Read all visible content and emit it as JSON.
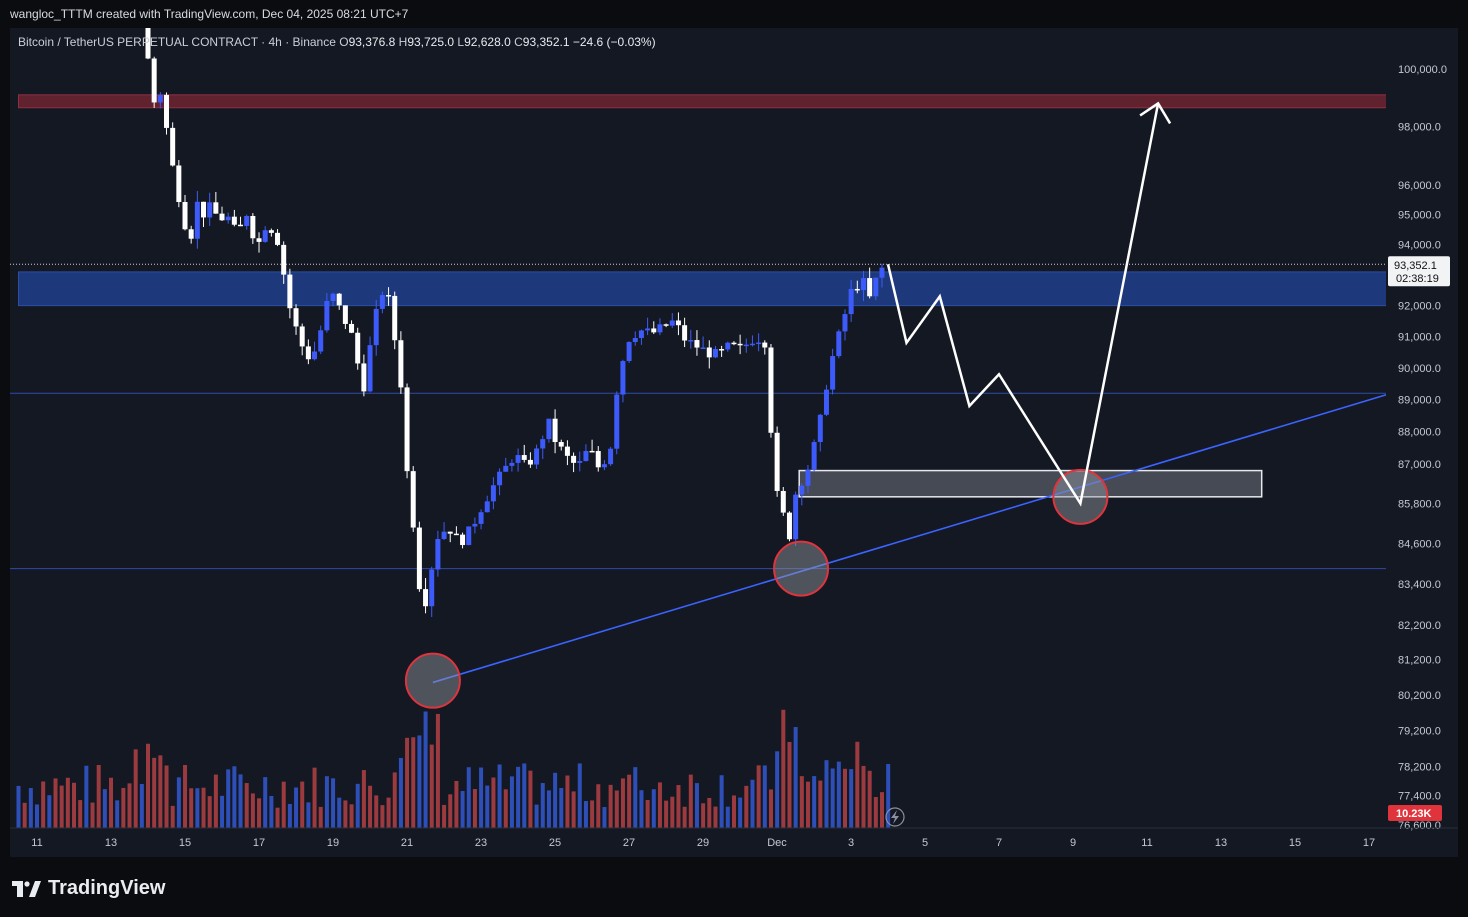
{
  "header": {
    "caption": "wangloc_TTTM created with TradingView.com, Dec 04, 2025 08:21 UTC+7"
  },
  "legend": {
    "symbol": "Bitcoin / TetherUS PERPETUAL CONTRACT · 4h · Binance",
    "open_label": "O",
    "open": "93,376.8",
    "high_label": "H",
    "high": "93,725.0",
    "low_label": "L",
    "low": "92,628.0",
    "close_label": "C",
    "close": "93,352.1",
    "change": "−24.6 (−0.03%)"
  },
  "current_price": {
    "value": "93,352.1",
    "countdown": "02:38:19"
  },
  "volume_tag": "10.23K",
  "branding": {
    "name": "TradingView"
  },
  "colors": {
    "background": "#141822",
    "up_candle": "#3d5bfa",
    "down_candle": "#ffffff",
    "zone_blue": "#1f3f8c",
    "zone_red": "#6e2431",
    "trendline": "#3b63ff",
    "volume_up": "#2e4fb8",
    "volume_down": "#9b3b3f"
  },
  "chart_data": {
    "type": "candlestick",
    "y_scale": "log",
    "ylim": [
      76600,
      101000
    ],
    "price_ticks": [
      "100,000.0",
      "98,000.0",
      "96,000.0",
      "95,000.0",
      "94,000.0",
      "92,000.0",
      "91,000.0",
      "90,000.0",
      "89,000.0",
      "88,000.0",
      "87,000.0",
      "85,800.0",
      "84,600.0",
      "83,400.0",
      "82,200.0",
      "81,200.0",
      "80,200.0",
      "79,200.0",
      "78,200.0",
      "77,400.0",
      "76,600.0"
    ],
    "price_tick_values": [
      100000,
      98000,
      96000,
      95000,
      94000,
      92000,
      91000,
      90000,
      89000,
      88000,
      87000,
      85800,
      84600,
      83400,
      82200,
      81200,
      80200,
      79200,
      78200,
      77400,
      76600
    ],
    "date_ticks": [
      "11",
      "13",
      "15",
      "17",
      "19",
      "21",
      "23",
      "25",
      "27",
      "29",
      "Dec",
      "3",
      "5",
      "7",
      "9",
      "11",
      "13",
      "15",
      "17"
    ],
    "date_tick_days": [
      11,
      13,
      15,
      17,
      19,
      21,
      23,
      25,
      27,
      29,
      31,
      33,
      35,
      37,
      39,
      41,
      43,
      45,
      47
    ],
    "ohlc_path": [
      [
        14.0,
        101500
      ],
      [
        14.2,
        98700
      ],
      [
        14.4,
        99300
      ],
      [
        14.6,
        97800
      ],
      [
        14.8,
        96200
      ],
      [
        15.0,
        95200
      ],
      [
        15.2,
        94000
      ],
      [
        15.4,
        95400
      ],
      [
        15.6,
        95000
      ],
      [
        15.8,
        95300
      ],
      [
        16.0,
        94800
      ],
      [
        16.2,
        95000
      ],
      [
        16.5,
        94300
      ],
      [
        16.8,
        95200
      ],
      [
        17.0,
        93800
      ],
      [
        17.3,
        94800
      ],
      [
        17.6,
        94100
      ],
      [
        17.9,
        92000
      ],
      [
        18.2,
        90800
      ],
      [
        18.5,
        90200
      ],
      [
        18.8,
        91400
      ],
      [
        19.0,
        92500
      ],
      [
        19.3,
        91800
      ],
      [
        19.6,
        91000
      ],
      [
        19.9,
        89300
      ],
      [
        20.2,
        91500
      ],
      [
        20.5,
        92800
      ],
      [
        20.9,
        89800
      ],
      [
        21.1,
        86500
      ],
      [
        21.3,
        84800
      ],
      [
        21.5,
        82400
      ],
      [
        21.7,
        83600
      ],
      [
        21.9,
        84800
      ],
      [
        22.2,
        85100
      ],
      [
        22.5,
        84600
      ],
      [
        22.8,
        85000
      ],
      [
        23.1,
        85700
      ],
      [
        23.4,
        86300
      ],
      [
        23.7,
        86800
      ],
      [
        24.0,
        87300
      ],
      [
        24.3,
        86900
      ],
      [
        24.6,
        87400
      ],
      [
        24.9,
        88300
      ],
      [
        25.1,
        87700
      ],
      [
        25.4,
        87200
      ],
      [
        25.7,
        86900
      ],
      [
        26.0,
        87500
      ],
      [
        26.3,
        86800
      ],
      [
        26.6,
        87600
      ],
      [
        26.8,
        89800
      ],
      [
        27.1,
        91000
      ],
      [
        27.4,
        91200
      ],
      [
        27.7,
        91100
      ],
      [
        28.0,
        91300
      ],
      [
        28.3,
        91500
      ],
      [
        28.6,
        90900
      ],
      [
        28.9,
        90700
      ],
      [
        29.2,
        90500
      ],
      [
        29.5,
        90400
      ],
      [
        29.8,
        90700
      ],
      [
        30.1,
        90600
      ],
      [
        30.5,
        91000
      ],
      [
        30.8,
        90800
      ],
      [
        31.0,
        86300
      ],
      [
        31.2,
        85700
      ],
      [
        31.4,
        84700
      ],
      [
        31.6,
        86200
      ],
      [
        31.9,
        86800
      ],
      [
        32.2,
        88000
      ],
      [
        32.5,
        90000
      ],
      [
        32.8,
        91200
      ],
      [
        33.1,
        92500
      ],
      [
        33.4,
        92800
      ],
      [
        33.6,
        92200
      ],
      [
        33.8,
        93000
      ],
      [
        34.0,
        93350
      ]
    ],
    "projection_path": [
      [
        34.0,
        93350
      ],
      [
        34.5,
        90800
      ],
      [
        35.4,
        92300
      ],
      [
        36.2,
        88800
      ],
      [
        37.0,
        89800
      ],
      [
        39.2,
        85800
      ],
      [
        41.3,
        98800
      ]
    ],
    "zones": [
      {
        "name": "resistance-zone",
        "kind": "blue",
        "from": 92000,
        "to": 93100,
        "x0": 10.5,
        "x1": 47.6
      },
      {
        "name": "target-zone",
        "kind": "red",
        "from": 98650,
        "to": 99100,
        "x0": 10.5,
        "x1": 47.6
      },
      {
        "name": "demand-box",
        "kind": "white",
        "from": 86000,
        "to": 86800,
        "x0": 31.6,
        "x1": 44.1
      }
    ],
    "horizontal_lines": [
      89200,
      83850
    ],
    "trendline": [
      [
        21.7,
        80550
      ],
      [
        47.6,
        89200
      ]
    ],
    "touch_circles": [
      [
        21.7,
        80600
      ],
      [
        31.65,
        83850
      ],
      [
        39.2,
        86000
      ]
    ],
    "volume_max": 10.23,
    "volume_unit": "K"
  }
}
